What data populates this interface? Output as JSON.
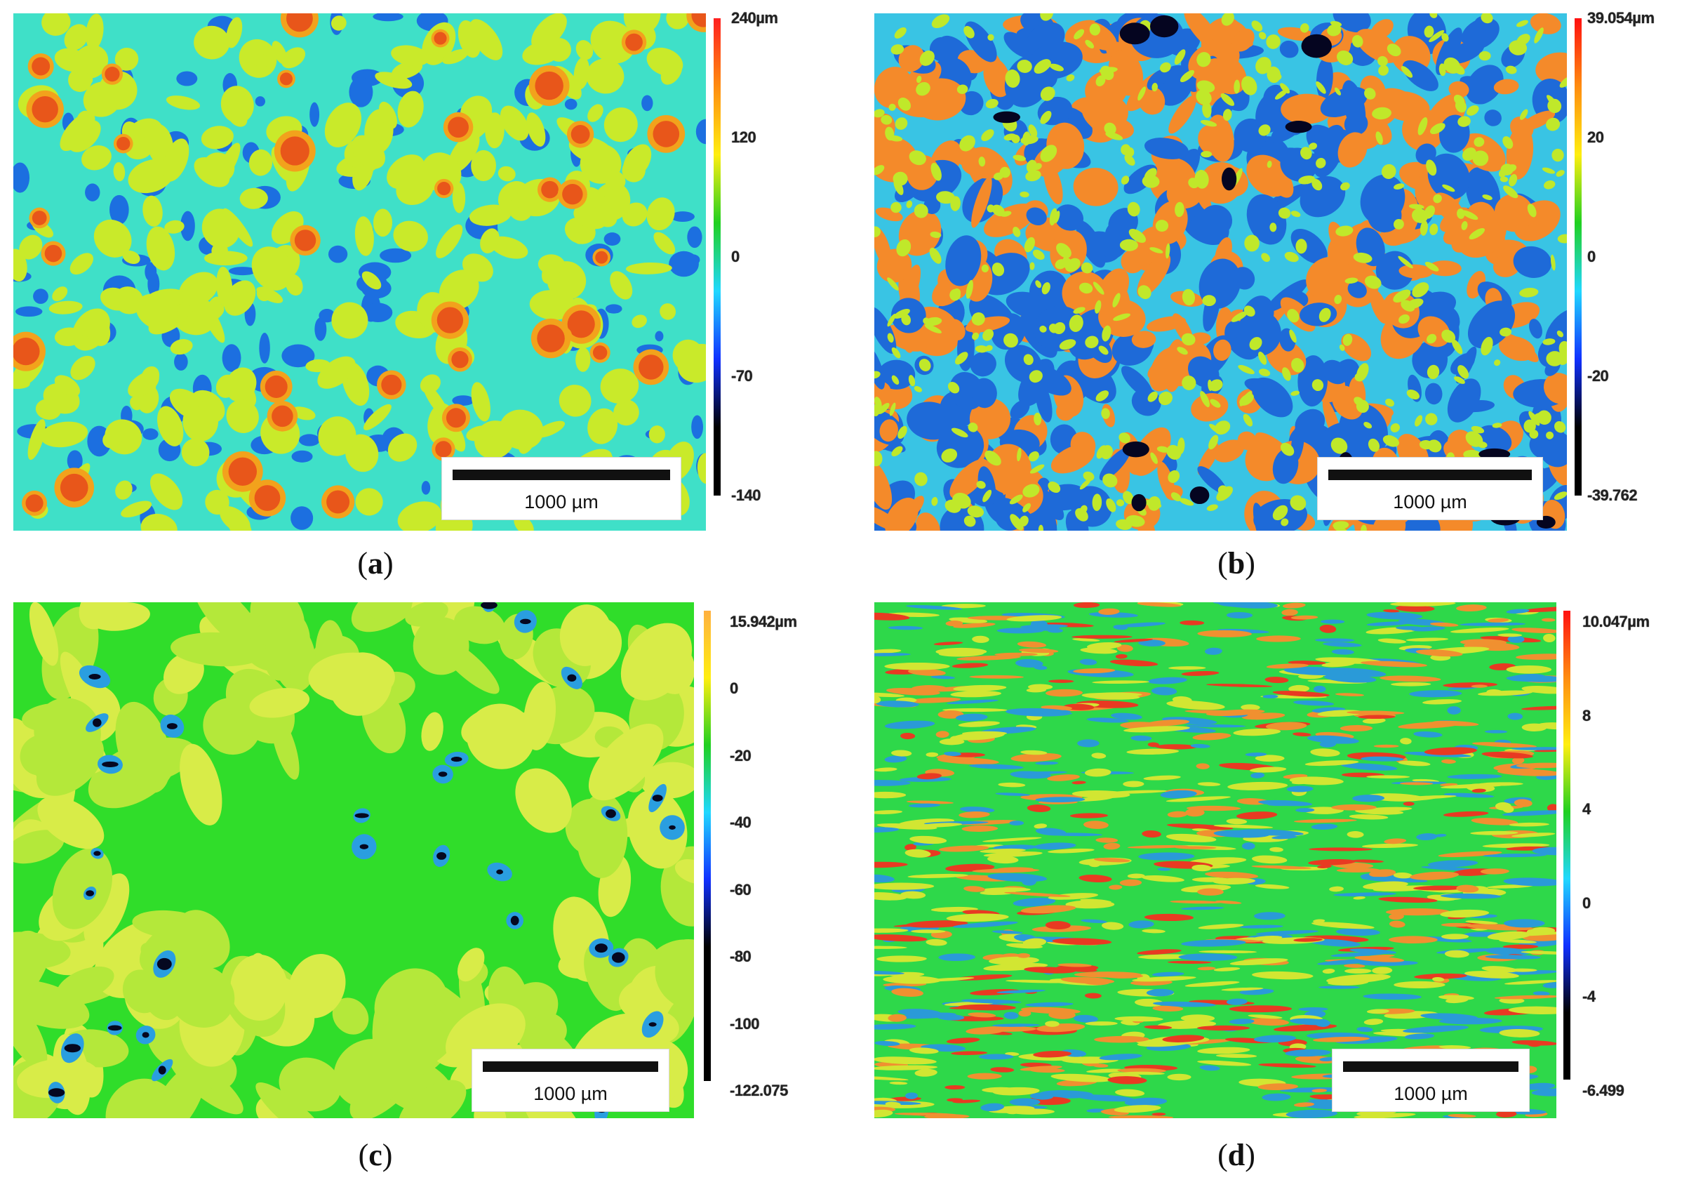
{
  "scale_bar_label": "1000 µm",
  "panels": [
    {
      "id": "a",
      "caption_letter": "a",
      "palette": {
        "base": "#3fe0c8",
        "mid": "#c9ea2a",
        "high": "#f2a21c",
        "peak": "#e8561a",
        "low": "#1c6fe0",
        "deep": "#0a1a6a"
      },
      "colorbar": {
        "stops": [
          "#ff2020",
          "#ff8c10",
          "#ffee10",
          "#20d020",
          "#20d8ff",
          "#1030ff",
          "#000000",
          "#000000"
        ],
        "ticks": [
          "240µm",
          "120",
          "0",
          "-70",
          "-140"
        ]
      }
    },
    {
      "id": "b",
      "caption_letter": "b",
      "palette": {
        "base": "#39c4e4",
        "mid": "#c0e82a",
        "high": "#f48a2a",
        "peak": "#ee6a20",
        "low": "#1e6ad8",
        "deep": "#050520"
      },
      "colorbar": {
        "stops": [
          "#ff1010",
          "#ff8c10",
          "#ffee10",
          "#20d020",
          "#20d8ff",
          "#1030ff",
          "#000000",
          "#000000"
        ],
        "ticks": [
          "39.054µm",
          "20",
          "0",
          "-20",
          "-39.762"
        ]
      }
    },
    {
      "id": "c",
      "caption_letter": "c",
      "palette": {
        "base": "#30dd2a",
        "mid": "#b4e83a",
        "high": "#d8ec48",
        "peak": "#e6ee60",
        "low": "#2a9ee0",
        "deep": "#050820"
      },
      "colorbar": {
        "stops": [
          "#ffb040",
          "#ffee10",
          "#20d020",
          "#20d8ff",
          "#1030ff",
          "#000000",
          "#000000",
          "#000000"
        ],
        "ticks": [
          "15.942µm",
          "0",
          "-20",
          "-40",
          "-60",
          "-80",
          "-100",
          "-122.075"
        ]
      }
    },
    {
      "id": "d",
      "caption_letter": "d",
      "palette": {
        "base": "#2ed84a",
        "mid": "#d2e632",
        "high": "#f09030",
        "peak": "#e83a22",
        "low": "#2a9ad8",
        "deep": "#123a8a"
      },
      "colorbar": {
        "stops": [
          "#ff1010",
          "#ff8c10",
          "#ffee10",
          "#20d020",
          "#20d8ff",
          "#1030ff",
          "#000000",
          "#000000"
        ],
        "ticks": [
          "10.047µm",
          "8",
          "4",
          "0",
          "-4",
          "-6.499"
        ]
      }
    }
  ]
}
